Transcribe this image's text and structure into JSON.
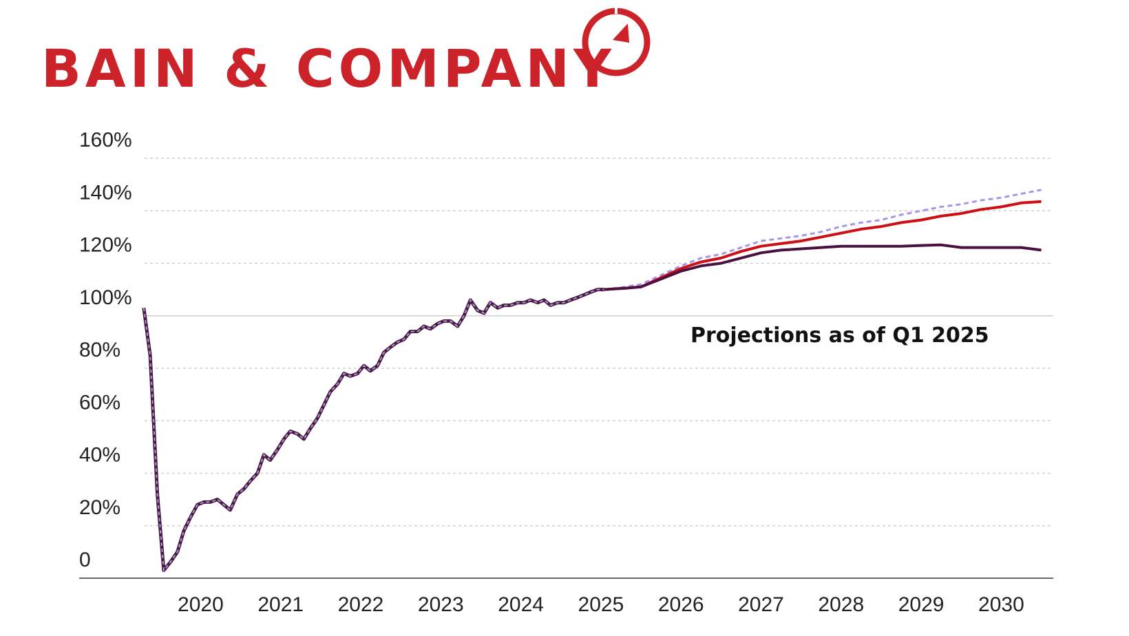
{
  "logo": {
    "text": "BAIN & COMPANY",
    "color": "#cc2229",
    "icon": "compass-dial-icon"
  },
  "chart_data": {
    "type": "line",
    "title": "",
    "xlabel": "",
    "ylabel": "",
    "annotation": "Projections as of Q1 2025",
    "ylim": [
      0,
      160
    ],
    "xlim": [
      2019.3,
      2030.65
    ],
    "y_ticks": [
      0,
      20,
      40,
      60,
      80,
      100,
      120,
      140,
      160
    ],
    "y_tick_labels": [
      "0",
      "20%",
      "40%",
      "60%",
      "80%",
      "100%",
      "120%",
      "140%",
      "160%"
    ],
    "x_ticks": [
      2020,
      2021,
      2022,
      2023,
      2024,
      2025,
      2026,
      2027,
      2028,
      2029,
      2030
    ],
    "x_tick_labels": [
      "2020",
      "2021",
      "2022",
      "2023",
      "2024",
      "2025",
      "2026",
      "2027",
      "2028",
      "2029",
      "2030"
    ],
    "grid": true,
    "colors": {
      "historical": "#4a1a3a",
      "historical_dash": "#a995e8",
      "series_dark": "#4a1040",
      "series_red": "#cc0f14",
      "series_dashed": "#a995e8",
      "grid": "#cfcfcf",
      "axis": "#333333"
    },
    "historical": {
      "x": [
        2019.29,
        2019.37,
        2019.46,
        2019.54,
        2019.62,
        2019.71,
        2019.79,
        2019.87,
        2019.96,
        2020.04,
        2020.12,
        2020.21,
        2020.29,
        2020.37,
        2020.46,
        2020.54,
        2020.62,
        2020.71,
        2020.79,
        2020.87,
        2020.96,
        2021.04,
        2021.12,
        2021.21,
        2021.29,
        2021.37,
        2021.46,
        2021.54,
        2021.62,
        2021.71,
        2021.79,
        2021.87,
        2021.96,
        2022.04,
        2022.12,
        2022.21,
        2022.29,
        2022.37,
        2022.46,
        2022.54,
        2022.62,
        2022.71,
        2022.79,
        2022.87,
        2022.96,
        2023.04,
        2023.12,
        2023.21,
        2023.29,
        2023.37,
        2023.46,
        2023.54,
        2023.62,
        2023.71,
        2023.79,
        2023.87,
        2023.96,
        2024.04,
        2024.12,
        2024.21,
        2024.29,
        2024.37,
        2024.46,
        2024.54,
        2024.62,
        2024.71,
        2024.79,
        2024.87,
        2024.96,
        2025.04
      ],
      "y": [
        103,
        85,
        32,
        3,
        6,
        10,
        18,
        23,
        28,
        29,
        29,
        30,
        28,
        26,
        32,
        34,
        37,
        40,
        47,
        45,
        49,
        53,
        56,
        55,
        53,
        57,
        61,
        66,
        71,
        74,
        78,
        77,
        78,
        81,
        79,
        81,
        86,
        88,
        90,
        91,
        94,
        94,
        96,
        95,
        97,
        98,
        98,
        96,
        100,
        106,
        102,
        101,
        105,
        103,
        104,
        104,
        105,
        105,
        106,
        105,
        106,
        104,
        105,
        105,
        106,
        107,
        108,
        109,
        110,
        110
      ]
    },
    "series": [
      {
        "key": "dark",
        "x": [
          2025.04,
          2025.3,
          2025.5,
          2025.75,
          2026.0,
          2026.25,
          2026.5,
          2026.75,
          2027.0,
          2027.25,
          2027.5,
          2027.75,
          2028.0,
          2028.25,
          2028.5,
          2028.75,
          2029.0,
          2029.25,
          2029.5,
          2029.75,
          2030.0,
          2030.25,
          2030.5
        ],
        "y": [
          110,
          110.5,
          111,
          114,
          117,
          119,
          120,
          122,
          124,
          125,
          125.5,
          126,
          126.5,
          126.5,
          126.5,
          126.5,
          126.8,
          127,
          126,
          126,
          126,
          126,
          125
        ]
      },
      {
        "key": "red",
        "x": [
          2025.04,
          2025.3,
          2025.5,
          2025.75,
          2026.0,
          2026.25,
          2026.5,
          2026.75,
          2027.0,
          2027.25,
          2027.5,
          2027.75,
          2028.0,
          2028.25,
          2028.5,
          2028.75,
          2029.0,
          2029.25,
          2029.5,
          2029.75,
          2030.0,
          2030.25,
          2030.5
        ],
        "y": [
          110,
          110.5,
          111,
          114.5,
          118,
          120.5,
          122,
          124.5,
          126.5,
          127.5,
          128.5,
          130,
          131.5,
          133,
          134,
          135.5,
          136.5,
          138,
          139,
          140.5,
          141.5,
          143,
          143.5
        ]
      },
      {
        "key": "dashed",
        "x": [
          2025.04,
          2025.3,
          2025.5,
          2025.75,
          2026.0,
          2026.25,
          2026.5,
          2026.75,
          2027.0,
          2027.25,
          2027.5,
          2027.75,
          2028.0,
          2028.25,
          2028.5,
          2028.75,
          2029.0,
          2029.25,
          2029.5,
          2029.75,
          2030.0,
          2030.25,
          2030.5
        ],
        "y": [
          110,
          111,
          112,
          115.5,
          119,
          122,
          123.5,
          126,
          128.5,
          129.5,
          130.5,
          132,
          134,
          135.5,
          136.5,
          138.5,
          140,
          141.5,
          142.5,
          144,
          145,
          146.5,
          148
        ]
      }
    ]
  }
}
